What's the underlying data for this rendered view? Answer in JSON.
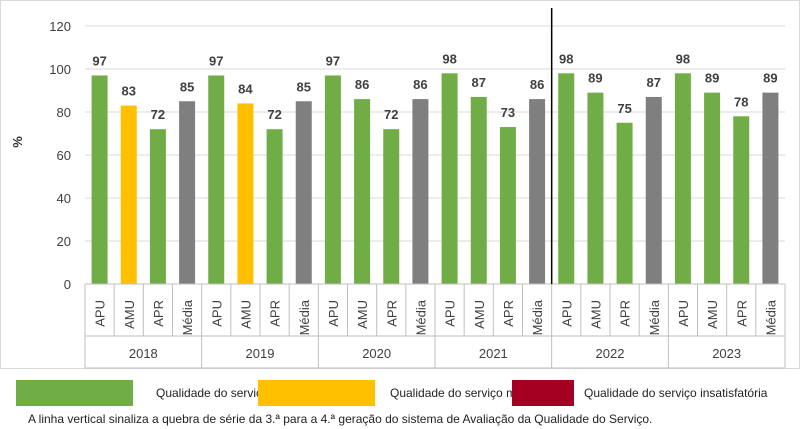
{
  "chart_data": {
    "type": "bar",
    "ylabel": "%",
    "ylim": [
      0,
      120
    ],
    "yticks": [
      0,
      20,
      40,
      60,
      80,
      100,
      120
    ],
    "grid": true,
    "groups": [
      {
        "label": "2018",
        "bars": [
          {
            "category": "APU",
            "value": 97,
            "quality": "boa"
          },
          {
            "category": "AMU",
            "value": 83,
            "quality": "mediana"
          },
          {
            "category": "APR",
            "value": 72,
            "quality": "boa"
          },
          {
            "category": "Média",
            "value": 85,
            "quality": "media"
          }
        ]
      },
      {
        "label": "2019",
        "bars": [
          {
            "category": "APU",
            "value": 97,
            "quality": "boa"
          },
          {
            "category": "AMU",
            "value": 84,
            "quality": "mediana"
          },
          {
            "category": "APR",
            "value": 72,
            "quality": "boa"
          },
          {
            "category": "Média",
            "value": 85,
            "quality": "media"
          }
        ]
      },
      {
        "label": "2020",
        "bars": [
          {
            "category": "APU",
            "value": 97,
            "quality": "boa"
          },
          {
            "category": "AMU",
            "value": 86,
            "quality": "boa"
          },
          {
            "category": "APR",
            "value": 72,
            "quality": "boa"
          },
          {
            "category": "Média",
            "value": 86,
            "quality": "media"
          }
        ]
      },
      {
        "label": "2021",
        "bars": [
          {
            "category": "APU",
            "value": 98,
            "quality": "boa"
          },
          {
            "category": "AMU",
            "value": 87,
            "quality": "boa"
          },
          {
            "category": "APR",
            "value": 73,
            "quality": "boa"
          },
          {
            "category": "Média",
            "value": 86,
            "quality": "media"
          }
        ]
      },
      {
        "label": "2022",
        "bars": [
          {
            "category": "APU",
            "value": 98,
            "quality": "boa"
          },
          {
            "category": "AMU",
            "value": 89,
            "quality": "boa"
          },
          {
            "category": "APR",
            "value": 75,
            "quality": "boa"
          },
          {
            "category": "Média",
            "value": 87,
            "quality": "media"
          }
        ]
      },
      {
        "label": "2023",
        "bars": [
          {
            "category": "APU",
            "value": 98,
            "quality": "boa"
          },
          {
            "category": "AMU",
            "value": 89,
            "quality": "boa"
          },
          {
            "category": "APR",
            "value": 78,
            "quality": "boa"
          },
          {
            "category": "Média",
            "value": 89,
            "quality": "media"
          }
        ]
      }
    ],
    "series_break_after_group": "2021",
    "colors": {
      "boa": "#70AD47",
      "mediana": "#FFC000",
      "insatisfatoria": "#A50021",
      "media": "#7F7F7F"
    }
  },
  "legend": [
    {
      "label": "Qualidade do serviço boa",
      "color": "#70AD47"
    },
    {
      "label": "Qualidade do serviço mediana",
      "color": "#FFC000"
    },
    {
      "label": "Qualidade do serviço insatisfatória",
      "color": "#A50021"
    }
  ],
  "footnote": "A linha vertical sinaliza a quebra de série da 3.ª para a 4.ª geração do sistema de Avaliação da Qualidade do Serviço."
}
